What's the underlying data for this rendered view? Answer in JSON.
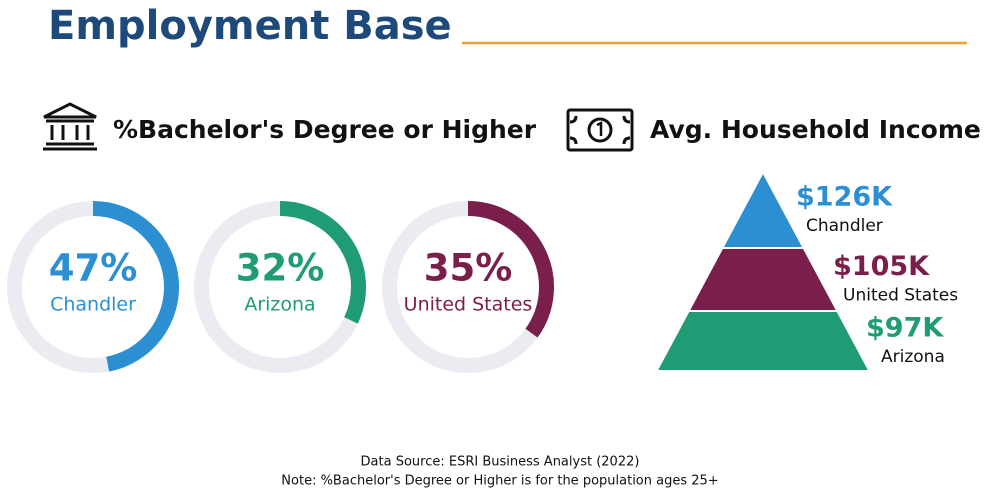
{
  "title": "Employment Base",
  "chart_data": [
    {
      "type": "ring",
      "title": "%Bachelor's Degree or Higher",
      "categories": [
        "Chandler",
        "Arizona",
        "United States"
      ],
      "values": [
        47,
        32,
        35
      ],
      "value_labels": [
        "47%",
        "32%",
        "35%"
      ],
      "colors": [
        "#2b8fd1",
        "#1f9c76",
        "#7a1f4c"
      ],
      "track_color": "#ebebf2",
      "ylim": [
        0,
        100
      ]
    },
    {
      "type": "pyramid",
      "title": "Avg. Household Income",
      "categories": [
        "Chandler",
        "United States",
        "Arizona"
      ],
      "values": [
        126000,
        105000,
        97000
      ],
      "value_labels": [
        "$126K",
        "$105K",
        "$97K"
      ],
      "colors": [
        "#2b8fd1",
        "#7a1f4c",
        "#1f9c76"
      ]
    }
  ],
  "source": "Data Source: ESRI Business Analyst (2022)",
  "note": "Note: %Bachelor's Degree or Higher is for the population ages 25+"
}
